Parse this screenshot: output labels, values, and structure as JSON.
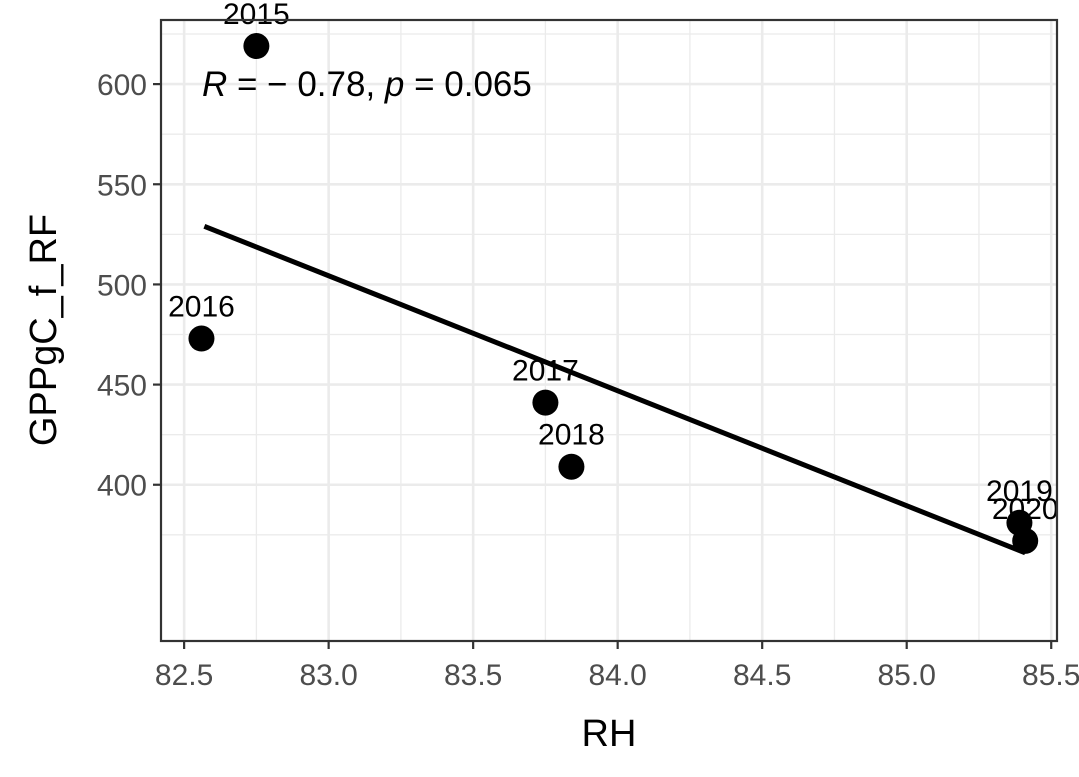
{
  "chart_data": {
    "type": "scatter",
    "xlabel": "RH",
    "ylabel": "GPPgC_f_RF",
    "xlim": [
      82.42,
      85.52
    ],
    "ylim": [
      322,
      632
    ],
    "x_ticks": [
      82.5,
      83.0,
      83.5,
      84.0,
      84.5,
      85.0,
      85.5
    ],
    "x_tick_labels": [
      "82.5",
      "83.0",
      "83.5",
      "84.0",
      "84.5",
      "85.0",
      "85.5"
    ],
    "x_minor_ticks": [
      82.75,
      83.25,
      83.75,
      84.25,
      84.75,
      85.25
    ],
    "y_ticks": [
      400,
      450,
      500,
      550,
      600
    ],
    "y_tick_labels": [
      "400",
      "450",
      "500",
      "550",
      "600"
    ],
    "y_minor_ticks": [
      375,
      425,
      475,
      525,
      575,
      625
    ],
    "grid": true,
    "theme": "bw",
    "point_color": "#000000",
    "points": [
      {
        "label": "2015",
        "x": 82.75,
        "y": 619
      },
      {
        "label": "2016",
        "x": 82.56,
        "y": 473
      },
      {
        "label": "2017",
        "x": 83.75,
        "y": 441
      },
      {
        "label": "2018",
        "x": 83.84,
        "y": 409
      },
      {
        "label": "2019",
        "x": 85.39,
        "y": 381
      },
      {
        "label": "2020",
        "x": 85.41,
        "y": 372
      }
    ],
    "fit_line": {
      "x": [
        82.57,
        85.41
      ],
      "y": [
        529,
        366
      ]
    },
    "annotation": {
      "R_symbol": "R",
      "R_value": " = − 0.78, ",
      "p_symbol": "p",
      "p_value": " = 0.065"
    }
  }
}
